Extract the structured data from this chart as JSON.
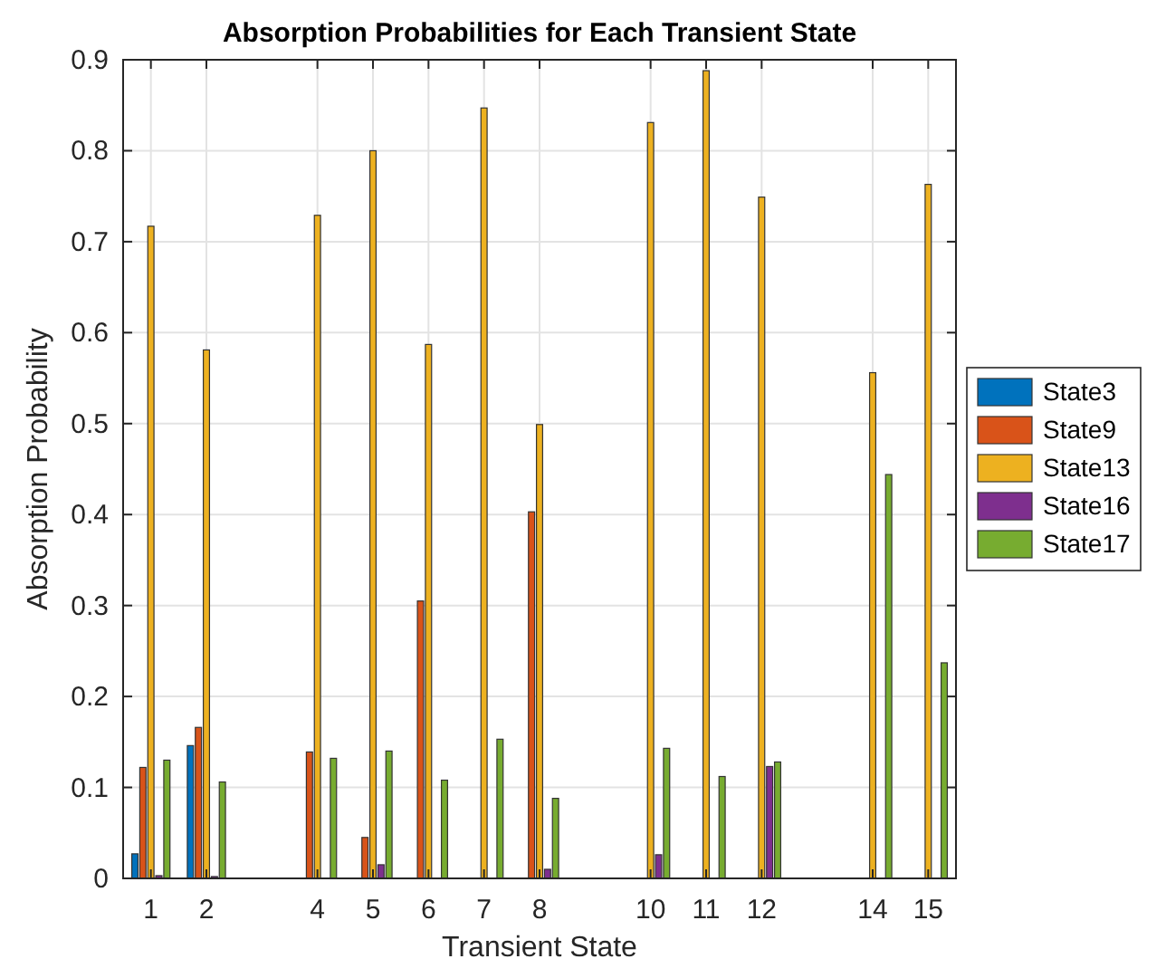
{
  "chart_data": {
    "type": "bar",
    "title": "Absorption Probabilities for Each Transient State",
    "xlabel": "Transient State",
    "ylabel": "Absorption Probability",
    "x": [
      1,
      2,
      4,
      5,
      6,
      7,
      8,
      10,
      11,
      12,
      14,
      15
    ],
    "series": [
      {
        "name": "State3",
        "color": "#0072bd",
        "values": [
          0.027,
          0.146,
          0,
          0,
          0,
          0,
          0,
          0,
          0,
          0,
          0,
          0
        ]
      },
      {
        "name": "State9",
        "color": "#d95319",
        "values": [
          0.122,
          0.166,
          0.139,
          0.045,
          0.305,
          0,
          0.403,
          0,
          0,
          0,
          0,
          0
        ]
      },
      {
        "name": "State13",
        "color": "#edb120",
        "values": [
          0.717,
          0.581,
          0.729,
          0.8,
          0.587,
          0.847,
          0.499,
          0.831,
          0.888,
          0.749,
          0.556,
          0.763
        ]
      },
      {
        "name": "State16",
        "color": "#7e2f8e",
        "values": [
          0.003,
          0.002,
          0,
          0.015,
          0,
          0,
          0.01,
          0.026,
          0,
          0.123,
          0,
          0
        ]
      },
      {
        "name": "State17",
        "color": "#77ac30",
        "values": [
          0.13,
          0.106,
          0.132,
          0.14,
          0.108,
          0.153,
          0.088,
          0.143,
          0.112,
          0.128,
          0.444,
          0.237
        ]
      }
    ],
    "xlim": [
      0.5,
      15.5
    ],
    "xticks": [
      1,
      2,
      4,
      5,
      6,
      7,
      8,
      10,
      11,
      12,
      14,
      15
    ],
    "ylim": [
      0,
      0.9
    ],
    "yticks": [
      0,
      0.1,
      0.2,
      0.3,
      0.4,
      0.5,
      0.6,
      0.7,
      0.8,
      0.9
    ],
    "grid": true,
    "legend": "right"
  }
}
